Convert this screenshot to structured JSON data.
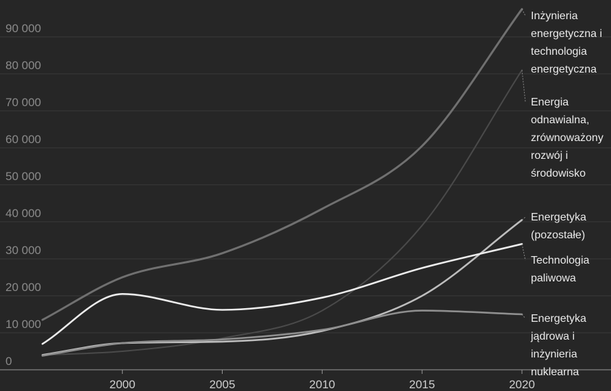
{
  "chart_data": {
    "type": "line",
    "title": "",
    "xlabel": "",
    "ylabel": "",
    "xlim": [
      1996,
      2020
    ],
    "ylim": [
      0,
      97000
    ],
    "x_ticks": [
      2000,
      2005,
      2010,
      2015,
      2020
    ],
    "x_tick_labels": [
      "2000",
      "2005",
      "2010",
      "2015",
      "2020"
    ],
    "y_ticks": [
      0,
      10000,
      20000,
      30000,
      40000,
      50000,
      60000,
      70000,
      80000,
      90000
    ],
    "y_tick_labels": [
      "0",
      "10 000",
      "20 000",
      "30 000",
      "40 000",
      "50 000",
      "60 000",
      "70 000",
      "80 000",
      "90 000"
    ],
    "grid": true,
    "legend": "direct labels at right end of lines",
    "series": [
      {
        "name": "Inżynieria energetyczna i technologia energetyczna",
        "label_lines": [
          "Inżynieria",
          "energetyczna i",
          "technologia",
          "energetyczna"
        ],
        "color": "#707070",
        "x": [
          1996,
          2000,
          2005,
          2010,
          2015,
          2020
        ],
        "y": [
          13500,
          25000,
          31500,
          43500,
          60500,
          97500
        ]
      },
      {
        "name": "Energia odnawialna, zrównoważony rozwój i środowisko",
        "label_lines": [
          "Energia",
          "odnawialna,",
          "zrównoważony",
          "rozwój i",
          "środowisko"
        ],
        "color": "#4a4a4a",
        "x": [
          1996,
          2000,
          2005,
          2010,
          2015,
          2020
        ],
        "y": [
          4000,
          5000,
          8500,
          16000,
          39000,
          81000
        ]
      },
      {
        "name": "Energetyka (pozostałe)",
        "label_lines": [
          "Energetyka",
          "(pozostałe)"
        ],
        "color": "#bdbdbd",
        "x": [
          1996,
          2000,
          2005,
          2010,
          2015,
          2020
        ],
        "y": [
          4000,
          7200,
          7600,
          10500,
          20000,
          40500
        ]
      },
      {
        "name": "Technologia paliwowa",
        "label_lines": [
          "Technologia",
          "paliwowa"
        ],
        "color": "#ececec",
        "x": [
          1996,
          2000,
          2005,
          2010,
          2015,
          2020
        ],
        "y": [
          7000,
          20500,
          16200,
          19500,
          27500,
          34000
        ]
      },
      {
        "name": "Energetyka jądrowa i inżynieria nuklearna",
        "label_lines": [
          "Energetyka",
          "jądrowa i",
          "inżynieria",
          "nuklearna"
        ],
        "color": "#8f8f8f",
        "x": [
          1996,
          2000,
          2005,
          2010,
          2015,
          2020
        ],
        "y": [
          3800,
          7200,
          8200,
          10800,
          16000,
          15000
        ]
      }
    ]
  }
}
